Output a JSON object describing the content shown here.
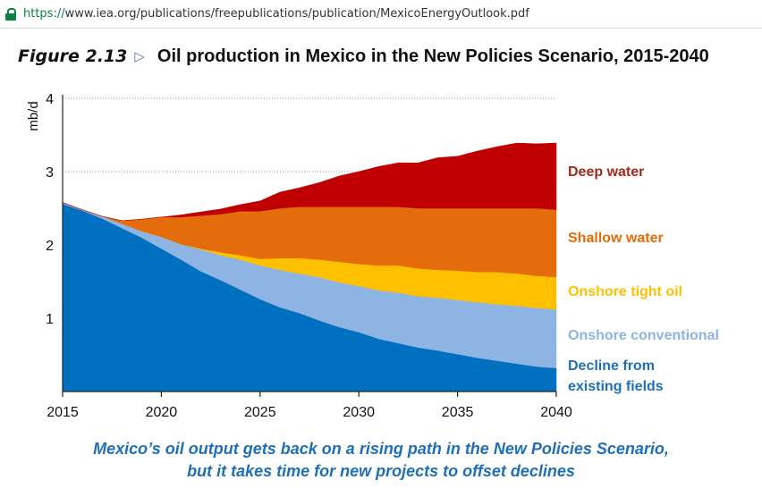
{
  "browser": {
    "url_protocol": "https://",
    "url_rest": "www.iea.org/publications/freepublications/publication/MexicoEnergyOutlook.pdf"
  },
  "figure": {
    "label": "Figure 2.13",
    "title": "Oil production in Mexico in the New Policies Scenario, 2015-2040",
    "caption_line1": "Mexico’s oil output gets back on a rising path in the New Policies Scenario,",
    "caption_line2": "but it takes time for new projects to offset declines"
  },
  "chart_data": {
    "type": "area",
    "stacked": true,
    "x": [
      2015,
      2016,
      2017,
      2018,
      2019,
      2020,
      2021,
      2022,
      2023,
      2024,
      2025,
      2026,
      2027,
      2028,
      2029,
      2030,
      2031,
      2032,
      2033,
      2034,
      2035,
      2036,
      2037,
      2038,
      2039,
      2040
    ],
    "xticks": [
      "2015",
      "2020",
      "2025",
      "2030",
      "2035",
      "2040"
    ],
    "xlim": [
      2015,
      2040
    ],
    "ylabel": "mb/d",
    "yticks": [
      "1",
      "2",
      "3",
      "4"
    ],
    "ylim": [
      0,
      4
    ],
    "grid": "horizontal-dotted",
    "legend": "right-inline",
    "series": [
      {
        "name": "Decline from existing fields",
        "color": "#0070c0",
        "values": [
          2.56,
          2.47,
          2.36,
          2.23,
          2.1,
          1.95,
          1.8,
          1.64,
          1.52,
          1.39,
          1.26,
          1.15,
          1.07,
          0.97,
          0.88,
          0.81,
          0.72,
          0.66,
          0.6,
          0.56,
          0.51,
          0.46,
          0.42,
          0.38,
          0.34,
          0.32
        ]
      },
      {
        "name": "Onshore conventional",
        "color": "#8db4e3",
        "values": [
          0.02,
          0.01,
          0.03,
          0.06,
          0.09,
          0.16,
          0.21,
          0.3,
          0.34,
          0.41,
          0.46,
          0.51,
          0.54,
          0.59,
          0.61,
          0.63,
          0.66,
          0.69,
          0.7,
          0.72,
          0.74,
          0.76,
          0.77,
          0.79,
          0.8,
          0.8
        ]
      },
      {
        "name": "Onshore tight oil",
        "color": "#ffc000",
        "values": [
          0,
          0,
          0,
          0,
          0,
          0,
          0,
          0.01,
          0.04,
          0.06,
          0.09,
          0.16,
          0.21,
          0.24,
          0.28,
          0.3,
          0.34,
          0.37,
          0.38,
          0.38,
          0.4,
          0.41,
          0.44,
          0.44,
          0.44,
          0.44
        ]
      },
      {
        "name": "Shallow water",
        "color": "#e46c0a",
        "values": [
          0,
          0,
          0,
          0.04,
          0.16,
          0.27,
          0.37,
          0.45,
          0.52,
          0.6,
          0.65,
          0.68,
          0.7,
          0.72,
          0.75,
          0.78,
          0.8,
          0.8,
          0.82,
          0.84,
          0.85,
          0.87,
          0.87,
          0.89,
          0.92,
          0.92
        ]
      },
      {
        "name": "Deep water",
        "color": "#c00000",
        "values": [
          0,
          0,
          0,
          0,
          0,
          0,
          0.03,
          0.05,
          0.07,
          0.09,
          0.14,
          0.22,
          0.26,
          0.33,
          0.42,
          0.48,
          0.55,
          0.6,
          0.62,
          0.69,
          0.71,
          0.78,
          0.84,
          0.89,
          0.88,
          0.91
        ]
      }
    ],
    "legend_entries": [
      {
        "label": "Deep water",
        "color": "#a32a1a"
      },
      {
        "label": "Shallow water",
        "color": "#e46c0a"
      },
      {
        "label": "Onshore tight oil",
        "color": "#ffc000"
      },
      {
        "label": "Onshore conventional",
        "color": "#8db4e3"
      },
      {
        "label": "Decline from",
        "color": "#1f6fb8"
      },
      {
        "label": "existing fields",
        "color": "#1f6fb8"
      }
    ]
  }
}
